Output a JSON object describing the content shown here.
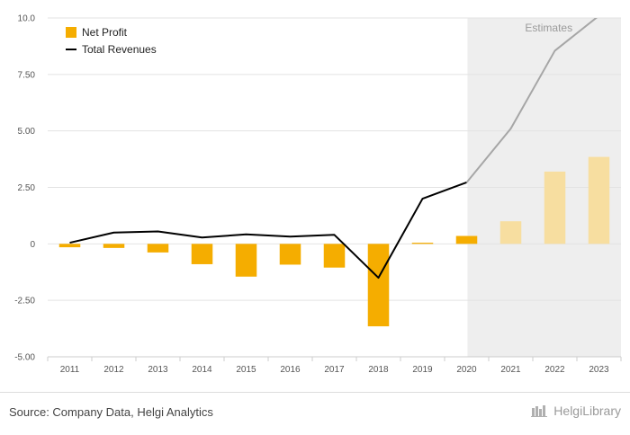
{
  "chart_data": {
    "type": "bar",
    "categories": [
      "2011",
      "2012",
      "2013",
      "2014",
      "2015",
      "2016",
      "2017",
      "2018",
      "2019",
      "2020",
      "2021",
      "2022",
      "2023"
    ],
    "series": [
      {
        "name": "Net Profit",
        "kind": "bar",
        "color": "#f5ad00",
        "values": [
          -0.15,
          -0.18,
          -0.38,
          -0.9,
          -1.45,
          -0.92,
          -1.05,
          -3.65,
          0.05,
          0.35,
          1.0,
          3.2,
          3.85
        ]
      },
      {
        "name": "Total Revenues",
        "kind": "line",
        "color": "#000000",
        "values": [
          0.05,
          0.5,
          0.55,
          0.28,
          0.42,
          0.32,
          0.4,
          -1.5,
          2.0,
          2.72,
          5.1,
          8.55,
          10.1
        ]
      }
    ],
    "estimate_start": "2021",
    "estimates_label": "Estimates",
    "y_ticks": [
      "10.0",
      "7.50",
      "5.00",
      "2.50",
      "0",
      "-2.50",
      "-5.00"
    ],
    "y_tick_values": [
      10,
      7.5,
      5,
      2.5,
      0,
      -2.5,
      -5
    ],
    "ylim": [
      -5,
      10
    ],
    "grid": true,
    "legend_position": "top-left",
    "estimate_colors": {
      "bar": "#f7deA0",
      "line": "#a6a6a6",
      "shade": "#eeeeee"
    }
  },
  "footer": {
    "source": "Source: Company Data, Helgi Analytics",
    "brand": "HelgiLibrary"
  }
}
